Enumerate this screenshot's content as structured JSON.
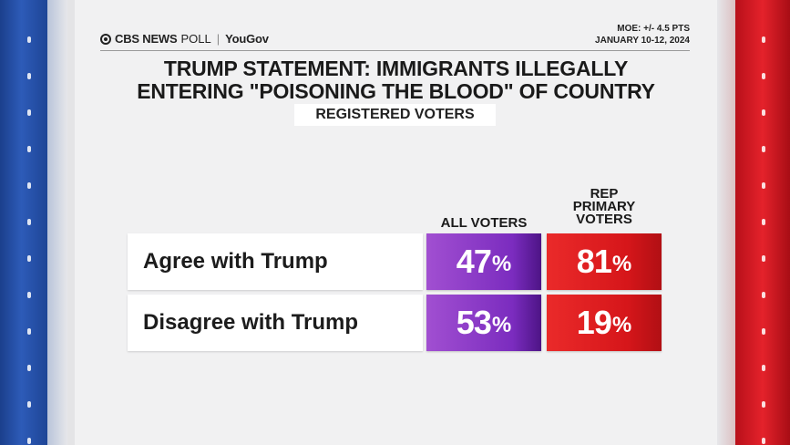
{
  "header": {
    "brand_left": "CBS NEWS",
    "brand_poll": "POLL",
    "brand_partner": "YouGov",
    "moe": "MOE: +/- 4.5  PTS",
    "date": "JANUARY 10-12, 2024"
  },
  "colors": {
    "all_voters": "#7b2cbf",
    "rep_primary": "#d6161a"
  },
  "chart_data": {
    "type": "table",
    "title_line1": "TRUMP STATEMENT: IMMIGRANTS ILLEGALLY",
    "title_line2": "ENTERING \"POISONING THE BLOOD\" OF COUNTRY",
    "subtitle": "REGISTERED VOTERS",
    "columns": [
      {
        "name": "ALL VOTERS",
        "lines": [
          "ALL VOTERS"
        ]
      },
      {
        "name": "REP PRIMARY VOTERS",
        "lines": [
          "REP",
          "PRIMARY",
          "VOTERS"
        ]
      }
    ],
    "rows": [
      {
        "label": "Agree with Trump",
        "values": [
          47,
          81
        ]
      },
      {
        "label": "Disagree with Trump",
        "values": [
          53,
          19
        ]
      }
    ],
    "unit": "%"
  }
}
